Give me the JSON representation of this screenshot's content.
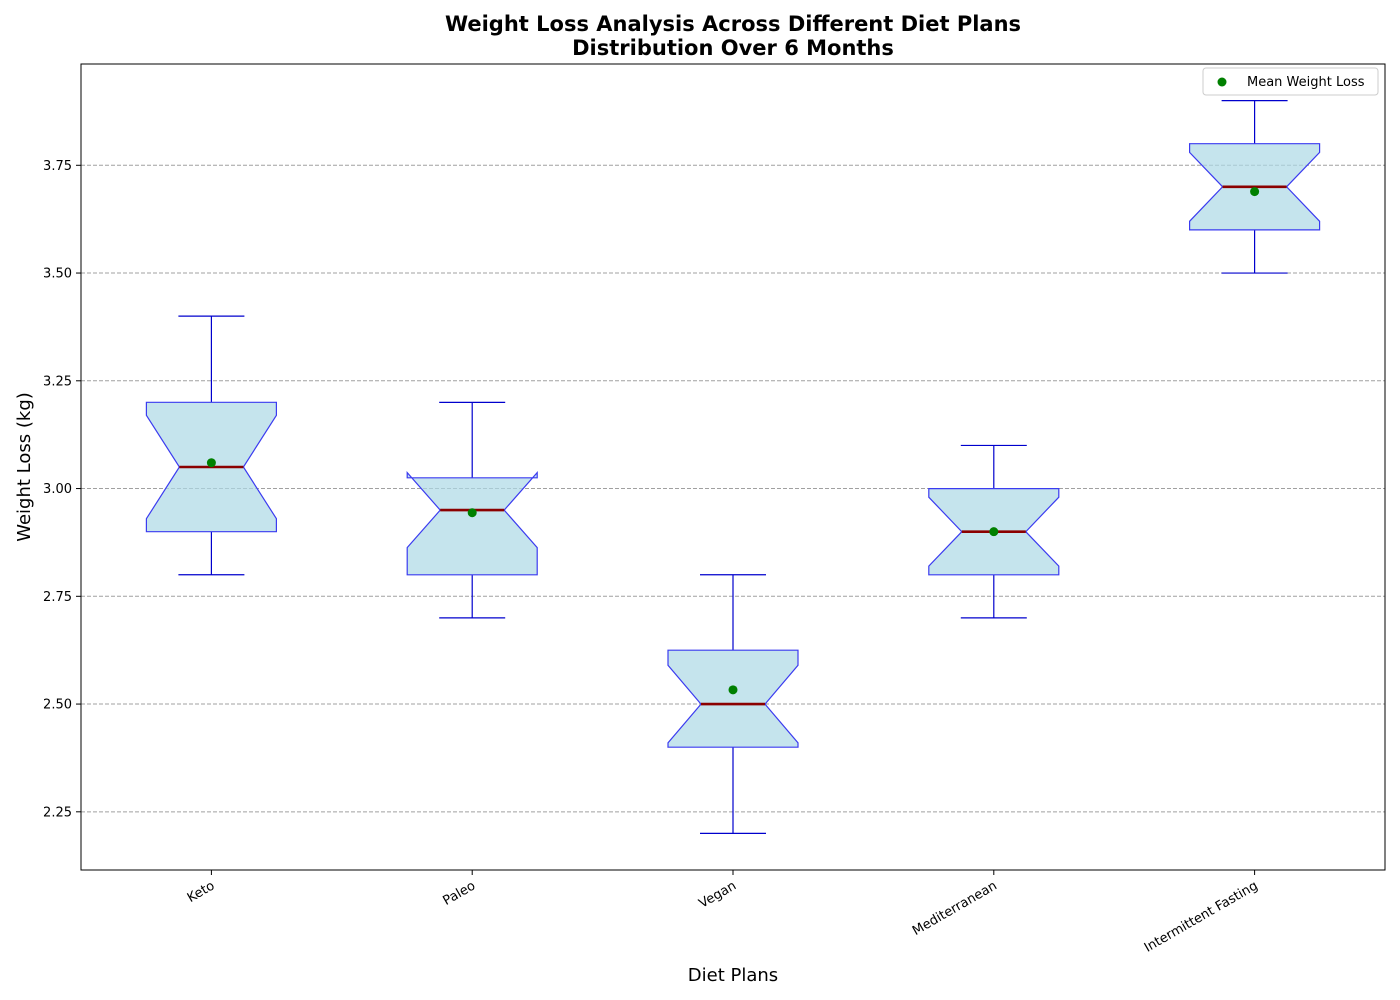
{
  "chart_data": {
    "type": "box",
    "title": "Weight Loss Analysis Across Different Diet Plans",
    "subtitle": "Distribution Over 6 Months",
    "xlabel": "Diet Plans",
    "ylabel": "Weight Loss (kg)",
    "ylim": [
      2.115,
      3.985
    ],
    "yticks": [
      2.25,
      2.5,
      2.75,
      3.0,
      3.25,
      3.5,
      3.75
    ],
    "ytick_labels": [
      "2.25",
      "2.50",
      "2.75",
      "3.00",
      "3.25",
      "3.50",
      "3.75"
    ],
    "grid": "y-dashed",
    "legend": {
      "placement": "top-right",
      "entries": [
        "Mean Weight Loss"
      ]
    },
    "categories": [
      "Keto",
      "Paleo",
      "Vegan",
      "Mediterranean",
      "Intermittent Fasting"
    ],
    "boxes": [
      {
        "min": 2.8,
        "q1": 2.9,
        "median": 3.05,
        "q3": 3.2,
        "max": 3.4,
        "mean": 3.06,
        "notch_low": 2.93,
        "notch_high": 3.17
      },
      {
        "min": 2.7,
        "q1": 2.8,
        "median": 2.95,
        "q3": 3.025,
        "max": 3.2,
        "mean": 2.944,
        "notch_low": 2.863,
        "notch_high": 3.037
      },
      {
        "min": 2.2,
        "q1": 2.4,
        "median": 2.5,
        "q3": 2.625,
        "max": 2.8,
        "mean": 2.533,
        "notch_low": 2.41,
        "notch_high": 2.59
      },
      {
        "min": 2.7,
        "q1": 2.8,
        "median": 2.9,
        "q3": 3.0,
        "max": 3.1,
        "mean": 2.9,
        "notch_low": 2.82,
        "notch_high": 2.98
      },
      {
        "min": 3.5,
        "q1": 3.6,
        "median": 3.7,
        "q3": 3.8,
        "max": 3.9,
        "mean": 3.689,
        "notch_low": 3.62,
        "notch_high": 3.78
      }
    ],
    "colors": {
      "box_fill": "#add8e6",
      "box_edge": "#3b3bf0",
      "whisker": "#0000cd",
      "median": "#8b0000",
      "mean_marker": "#008000",
      "grid": "#a0a0a0"
    }
  }
}
